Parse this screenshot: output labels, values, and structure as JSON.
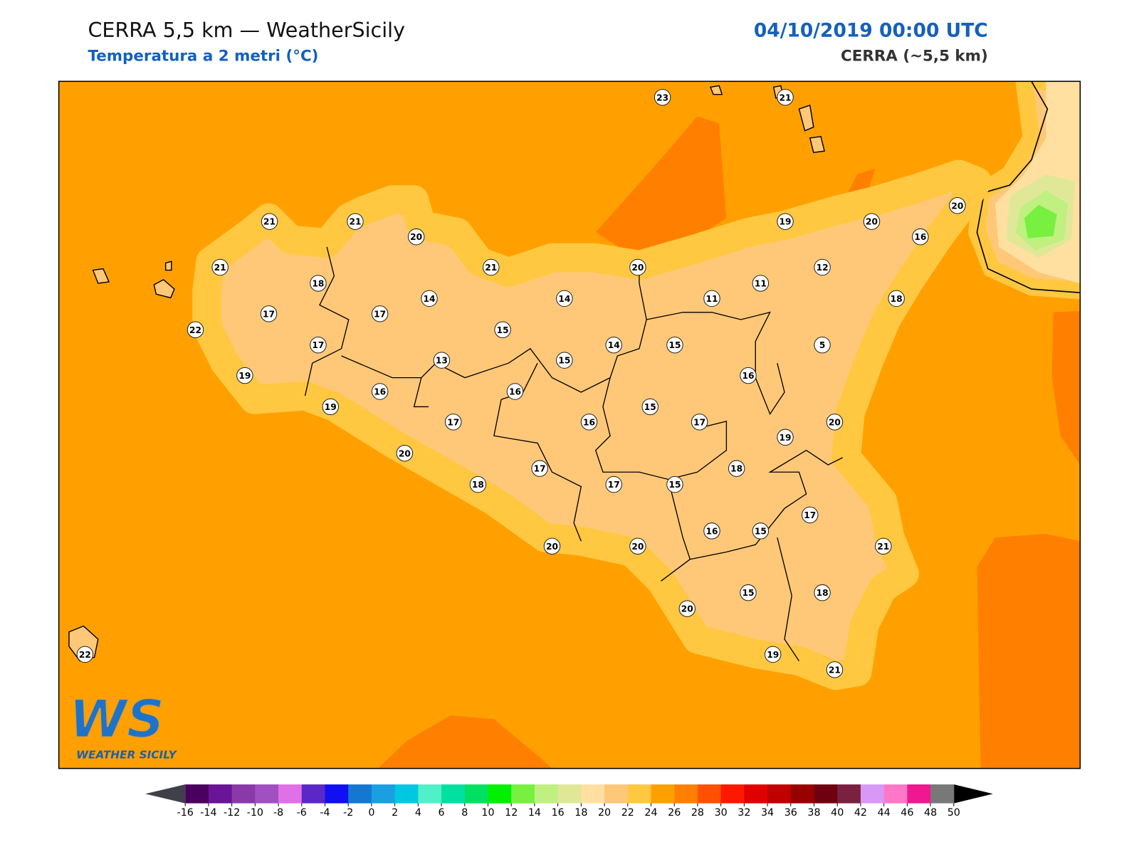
{
  "header": {
    "title": "CERRA 5,5 km — WeatherSicily",
    "subtitle": "Temperatura a 2 metri (°C)",
    "datetime": "04/10/2019 00:00 UTC",
    "model": "CERRA (~5,5 km)"
  },
  "logo": {
    "mark": "WS",
    "name": "WEATHER SICILY"
  },
  "points": [
    23,
    21,
    21,
    21,
    20,
    19,
    20,
    20,
    16,
    21,
    21,
    20,
    12,
    18,
    14,
    14,
    11,
    11,
    18,
    17,
    17,
    15,
    22,
    17,
    14,
    15,
    5,
    13,
    15,
    19,
    16,
    16,
    16,
    15,
    19,
    17,
    16,
    17,
    20,
    19,
    20,
    18,
    17,
    18,
    17,
    15,
    17,
    16,
    15,
    20,
    20,
    21,
    15,
    18,
    20,
    19,
    21,
    22
  ],
  "colorbar": {
    "ticks": [
      -16,
      -14,
      -12,
      -10,
      -8,
      -6,
      -4,
      -2,
      0,
      2,
      4,
      6,
      8,
      10,
      12,
      14,
      16,
      18,
      20,
      22,
      24,
      26,
      28,
      30,
      32,
      34,
      36,
      38,
      40,
      42,
      44,
      46,
      48,
      50
    ],
    "colors": [
      "#4a0060",
      "#6a1496",
      "#8a3aa8",
      "#a050c0",
      "#e070e8",
      "#5a28c8",
      "#1010f0",
      "#1478d2",
      "#1aa0e0",
      "#00c8e0",
      "#50f0c8",
      "#00e0a0",
      "#00e060",
      "#00f000",
      "#78f040",
      "#c0f080",
      "#e0e898",
      "#ffe0a0",
      "#ffc878",
      "#ffc840",
      "#ffa000",
      "#ff8000",
      "#ff5000",
      "#ff1800",
      "#e00000",
      "#c00000",
      "#980000",
      "#700010",
      "#7a2040",
      "#d898f8",
      "#ff78c8",
      "#f01890",
      "#787878",
      "#383838"
    ],
    "under_color": "#404048",
    "over_color": "#000000"
  }
}
